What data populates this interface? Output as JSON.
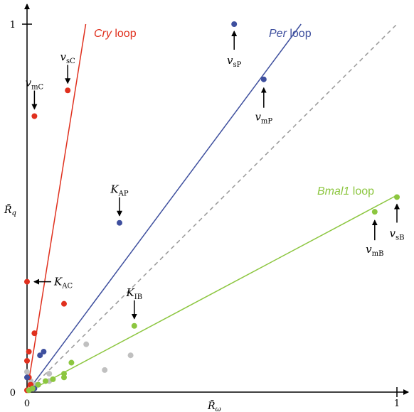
{
  "chart_data": {
    "type": "scatter",
    "xlabel": "R̄",
    "xlabel_sub": "ω",
    "ylabel": "R̄",
    "ylabel_sub": "q",
    "xlim": [
      0,
      1
    ],
    "ylim": [
      0,
      1
    ],
    "x_ticks": [
      "0",
      "1"
    ],
    "y_ticks": [
      "0",
      "1"
    ],
    "diagonal": {
      "style": "dashed",
      "color": "#999999"
    },
    "loops": [
      {
        "label": "Cry",
        "suffix": " loop",
        "color": "#e0301e",
        "slope": 6.3
      },
      {
        "label": "Per",
        "suffix": " loop",
        "color": "#3e4f9e",
        "slope": 1.35
      },
      {
        "label": "Bmal1",
        "suffix": " loop",
        "color": "#8cc63f",
        "slope": 0.535
      }
    ],
    "series": [
      {
        "color": "#e0301e",
        "points": [
          [
            0.02,
            0.75
          ],
          [
            0.11,
            0.82
          ],
          [
            0.0,
            0.3
          ],
          [
            0.1,
            0.24
          ],
          [
            0.02,
            0.16
          ],
          [
            0.005,
            0.11
          ],
          [
            0.0,
            0.085
          ],
          [
            0.005,
            0.04
          ],
          [
            0.01,
            0.02
          ],
          [
            0.0,
            0.005
          ]
        ]
      },
      {
        "color": "#3e4f9e",
        "points": [
          [
            0.56,
            1.0
          ],
          [
            0.64,
            0.85
          ],
          [
            0.25,
            0.46
          ],
          [
            0.045,
            0.11
          ],
          [
            0.035,
            0.1
          ],
          [
            0.0,
            0.04
          ],
          [
            0.03,
            0.02
          ],
          [
            0.02,
            0.01
          ]
        ]
      },
      {
        "color": "#8cc63f",
        "points": [
          [
            1.0,
            0.53
          ],
          [
            0.94,
            0.49
          ],
          [
            0.29,
            0.18
          ],
          [
            0.12,
            0.08
          ],
          [
            0.1,
            0.05
          ],
          [
            0.1,
            0.04
          ],
          [
            0.07,
            0.035
          ],
          [
            0.05,
            0.03
          ],
          [
            0.03,
            0.02
          ],
          [
            0.015,
            0.01
          ],
          [
            0.005,
            0.005
          ]
        ]
      },
      {
        "color": "#c0c0c0",
        "points": [
          [
            0.16,
            0.13
          ],
          [
            0.28,
            0.1
          ],
          [
            0.21,
            0.06
          ],
          [
            0.06,
            0.05
          ],
          [
            0.06,
            0.03
          ],
          [
            0.0,
            0.055
          ],
          [
            0.02,
            0.02
          ],
          [
            0.01,
            0.03
          ]
        ]
      }
    ],
    "annotations": [
      {
        "name": "v",
        "sub": "sP",
        "at": [
          0.56,
          1.0
        ],
        "dir": "up"
      },
      {
        "name": "v",
        "sub": "mP",
        "at": [
          0.64,
          0.85
        ],
        "dir": "down"
      },
      {
        "name": "v",
        "sub": "sC",
        "at": [
          0.11,
          0.82
        ],
        "dir": "above"
      },
      {
        "name": "v",
        "sub": "mC",
        "at": [
          0.02,
          0.75
        ],
        "dir": "above"
      },
      {
        "name": "K",
        "sub": "AP",
        "at": [
          0.25,
          0.46
        ],
        "dir": "above"
      },
      {
        "name": "K",
        "sub": "AC",
        "at": [
          0.0,
          0.3
        ],
        "dir": "right"
      },
      {
        "name": "K",
        "sub": "IB",
        "at": [
          0.29,
          0.18
        ],
        "dir": "above"
      },
      {
        "name": "v",
        "sub": "mB",
        "at": [
          0.94,
          0.49
        ],
        "dir": "down"
      },
      {
        "name": "v",
        "sub": "sB",
        "at": [
          1.0,
          0.53
        ],
        "dir": "up"
      }
    ]
  }
}
